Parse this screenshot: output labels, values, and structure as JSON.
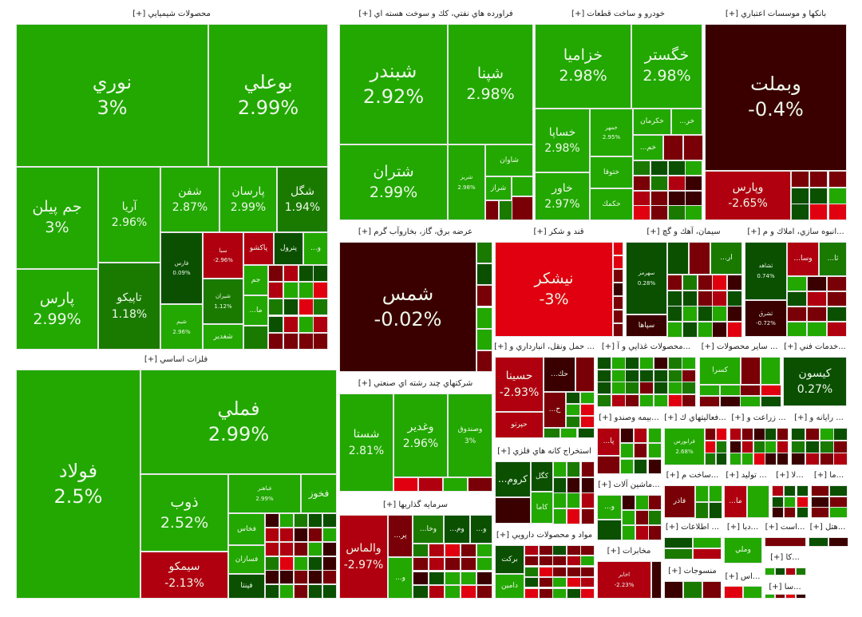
{
  "colors": {
    "up_strong": "#22a800",
    "up_mid": "#1a7a00",
    "up_weak": "#0a5000",
    "down_weak": "#3a0000",
    "down_mid": "#7a0008",
    "down_strong": "#b00010",
    "down_max": "#e00010"
  },
  "sectors": [
    {
      "title": "محصولات شيميايي [+]",
      "tiles": [
        {
          "name": "نوري",
          "change": "3%",
          "color": "#22a800"
        },
        {
          "name": "بوعلي",
          "change": "2.99%",
          "color": "#22a800"
        },
        {
          "name": "جم پيلن",
          "change": "3%",
          "color": "#22a800"
        },
        {
          "name": "پارس",
          "change": "2.99%",
          "color": "#22a800"
        },
        {
          "name": "آريا",
          "change": "2.96%",
          "color": "#22a800"
        },
        {
          "name": "تاپيكو",
          "change": "1.18%",
          "color": "#1a7a00"
        },
        {
          "name": "شفن",
          "change": "2.87%",
          "color": "#22a800"
        },
        {
          "name": "پارسان",
          "change": "2.99%",
          "color": "#22a800"
        },
        {
          "name": "شگل",
          "change": "1.94%",
          "color": "#1a7a00"
        },
        {
          "name": "فارس",
          "change": "0.09%",
          "color": "#0a5000"
        },
        {
          "name": "شيم",
          "change": "2.96%",
          "color": "#22a800"
        },
        {
          "name": "سبا",
          "change": "-2.96%",
          "color": "#b00010"
        },
        {
          "name": "شيران",
          "change": "1.12%",
          "color": "#1a7a00"
        },
        {
          "name": "شغدير",
          "change": "",
          "color": "#22a800"
        },
        {
          "name": "پاكشو",
          "change": "",
          "color": "#b00010"
        },
        {
          "name": "پترول",
          "change": "",
          "color": "#0a5000"
        },
        {
          "name": "...و",
          "change": "",
          "color": "#22a800"
        },
        {
          "name": "جم",
          "change": "",
          "color": "#22a800"
        },
        {
          "name": "...ما",
          "change": "",
          "color": "#22a800"
        }
      ]
    },
    {
      "title": "فراورده هاي نفتي، كك و سوخت هسته اي [+]",
      "tiles": [
        {
          "name": "شبندر",
          "change": "2.92%",
          "color": "#22a800"
        },
        {
          "name": "شپنا",
          "change": "2.98%",
          "color": "#22a800"
        },
        {
          "name": "شتران",
          "change": "2.99%",
          "color": "#22a800"
        },
        {
          "name": "شريز",
          "change": "2.98%",
          "color": "#22a800"
        },
        {
          "name": "شاوان",
          "change": "",
          "color": "#22a800"
        },
        {
          "name": "شراز",
          "change": "",
          "color": "#22a800"
        }
      ]
    },
    {
      "title": "خودرو و ساخت قطعات [+]",
      "tiles": [
        {
          "name": "خزاميا",
          "change": "2.98%",
          "color": "#22a800"
        },
        {
          "name": "خگستر",
          "change": "2.98%",
          "color": "#22a800"
        },
        {
          "name": "خساپا",
          "change": "2.98%",
          "color": "#22a800"
        },
        {
          "name": "خاور",
          "change": "2.97%",
          "color": "#22a800"
        },
        {
          "name": "خمهر",
          "change": "2.95%",
          "color": "#22a800"
        },
        {
          "name": "ختوقا",
          "change": "",
          "color": "#22a800"
        },
        {
          "name": "خكمك",
          "change": "",
          "color": "#22a800"
        },
        {
          "name": "خكرمان",
          "change": "",
          "color": "#22a800"
        },
        {
          "name": "...خر",
          "change": "",
          "color": "#22a800"
        },
        {
          "name": "...خم",
          "change": "",
          "color": "#22a800"
        }
      ]
    },
    {
      "title": "بانكها و موسسات اعتباري [+]",
      "tiles": [
        {
          "name": "وبملت",
          "change": "-0.4%",
          "color": "#3a0000"
        },
        {
          "name": "وپارس",
          "change": "-2.65%",
          "color": "#b00010"
        }
      ]
    },
    {
      "title": "عرضه برق، گاز، بخاروآب گرم [+]",
      "tiles": [
        {
          "name": "شمس",
          "change": "-0.02%",
          "color": "#3a0000"
        }
      ]
    },
    {
      "title": "قند و شكر [+]",
      "tiles": [
        {
          "name": "نيشكر",
          "change": "-3%",
          "color": "#e00010"
        }
      ]
    },
    {
      "title": "سيمان، آهك و گچ [+]",
      "tiles": [
        {
          "name": "سهرمز",
          "change": "0.28%",
          "color": "#0a5000"
        },
        {
          "name": "سپاها",
          "change": "",
          "color": "#3a0000"
        },
        {
          "name": "...ار",
          "change": "",
          "color": "#1a7a00"
        }
      ]
    },
    {
      "title": "...انبوه سازي، املاك و م [+]",
      "tiles": [
        {
          "name": "ثشاهد",
          "change": "0.74%",
          "color": "#0a5000"
        },
        {
          "name": "ثشرق",
          "change": "-0.72%",
          "color": "#3a0000"
        },
        {
          "name": "...وسا",
          "change": "",
          "color": "#b00010"
        },
        {
          "name": "...ثا",
          "change": "",
          "color": "#1a7a00"
        }
      ]
    },
    {
      "title": "... حمل ونقل، انبارداري و [+]",
      "tiles": [
        {
          "name": "حسينا",
          "change": "-2.93%",
          "color": "#b00010"
        },
        {
          "name": "حپرتو",
          "change": "",
          "color": "#b00010"
        },
        {
          "name": "...حك",
          "change": "",
          "color": "#3a0000"
        },
        {
          "name": "...ح",
          "change": "",
          "color": "#7a0008"
        }
      ]
    },
    {
      "title": "...محصولات غذايي و آ [+]",
      "tiles": []
    },
    {
      "title": "... ساير محصولات [+]",
      "tiles": [
        {
          "name": "كسرا",
          "change": "",
          "color": "#22a800"
        }
      ]
    },
    {
      "title": "...خدمات فني [+]",
      "tiles": [
        {
          "name": "كيسون",
          "change": "0.27%",
          "color": "#0a5000"
        }
      ]
    },
    {
      "title": "استخراج كانه هاي فلزي [+]",
      "tiles": [
        {
          "name": "...كروم",
          "change": "",
          "color": "#0a5000"
        },
        {
          "name": "كگل",
          "change": "",
          "color": "#0a5000"
        },
        {
          "name": "كاما",
          "change": "",
          "color": "#22a800"
        }
      ]
    },
    {
      "title": "مواد و محصولات دارويي [+]",
      "tiles": [
        {
          "name": "بركت",
          "change": "",
          "color": "#0a5000"
        },
        {
          "name": "دامين",
          "change": "",
          "color": "#22a800"
        }
      ]
    },
    {
      "title": "...بيمه وصندو [+]",
      "tiles": [
        {
          "name": "...پا",
          "change": "",
          "color": "#b00010"
        }
      ]
    },
    {
      "title": "...فعاليتهاي ك [+]",
      "tiles": [
        {
          "name": "فرابورس",
          "change": "2.68%",
          "color": "#22a800"
        }
      ]
    },
    {
      "title": "... زراعت و [+]",
      "tiles": []
    },
    {
      "title": "... رايانه و [+]",
      "tiles": []
    },
    {
      "title": "...ماشين آلات [+]",
      "tiles": [
        {
          "name": "...و",
          "change": "",
          "color": "#22a800"
        }
      ]
    },
    {
      "title": "مخابرات [+]",
      "tiles": [
        {
          "name": "اخابر",
          "change": "-2.23%",
          "color": "#b00010"
        }
      ]
    },
    {
      "title": "...ساخت م [+]",
      "tiles": [
        {
          "name": "فاذر",
          "change": "",
          "color": "#7a0008"
        }
      ]
    },
    {
      "title": "... توليد [+]",
      "tiles": [
        {
          "name": "...ما",
          "change": "",
          "color": "#b00010"
        }
      ]
    },
    {
      "title": "...لا [+]",
      "tiles": []
    },
    {
      "title": "...ما [+]",
      "tiles": []
    },
    {
      "title": "... اطلاعات [+]",
      "tiles": []
    },
    {
      "title": "...دبا [+]",
      "tiles": [
        {
          "name": "وملي",
          "change": "",
          "color": "#22a800"
        }
      ]
    },
    {
      "title": "...است [+]",
      "tiles": []
    },
    {
      "title": "...هتل [+]",
      "tiles": []
    },
    {
      "title": "منسوجات [+]",
      "tiles": []
    },
    {
      "title": "...اس [+]",
      "tiles": []
    },
    {
      "title": "...كا [+]",
      "tiles": []
    },
    {
      "title": "...سا [+]",
      "tiles": []
    },
    {
      "title": "فلزات اساسي [+]",
      "tiles": [
        {
          "name": "فولاد",
          "change": "2.5%",
          "color": "#22a800"
        },
        {
          "name": "فملي",
          "change": "2.99%",
          "color": "#22a800"
        },
        {
          "name": "ذوب",
          "change": "2.52%",
          "color": "#22a800"
        },
        {
          "name": "سيمكو",
          "change": "-2.13%",
          "color": "#b00010"
        },
        {
          "name": "فباهنر",
          "change": "2.99%",
          "color": "#22a800"
        },
        {
          "name": "فخوز",
          "change": "",
          "color": "#22a800"
        },
        {
          "name": "فخاس",
          "change": "",
          "color": "#22a800"
        },
        {
          "name": "فسازان",
          "change": "",
          "color": "#22a800"
        },
        {
          "name": "فپنتا",
          "change": "",
          "color": "#0a5000"
        }
      ]
    },
    {
      "title": "شركتهاي چند رشته اي صنعتي [+]",
      "tiles": [
        {
          "name": "شستا",
          "change": "2.81%",
          "color": "#22a800"
        },
        {
          "name": "وغدير",
          "change": "2.96%",
          "color": "#22a800"
        },
        {
          "name": "وصندوق",
          "change": "3%",
          "color": "#22a800"
        }
      ]
    },
    {
      "title": "سرمايه گذاريها [+]",
      "tiles": [
        {
          "name": "والماس",
          "change": "-2.97%",
          "color": "#b00010"
        },
        {
          "name": "...پر",
          "change": "",
          "color": "#7a0008"
        },
        {
          "name": "...و",
          "change": "",
          "color": "#22a800"
        },
        {
          "name": "...وخا",
          "change": "",
          "color": "#1a7a00"
        },
        {
          "name": "...وم",
          "change": "",
          "color": "#0a5000"
        },
        {
          "name": "...و",
          "change": "",
          "color": "#0a5000"
        }
      ]
    }
  ]
}
